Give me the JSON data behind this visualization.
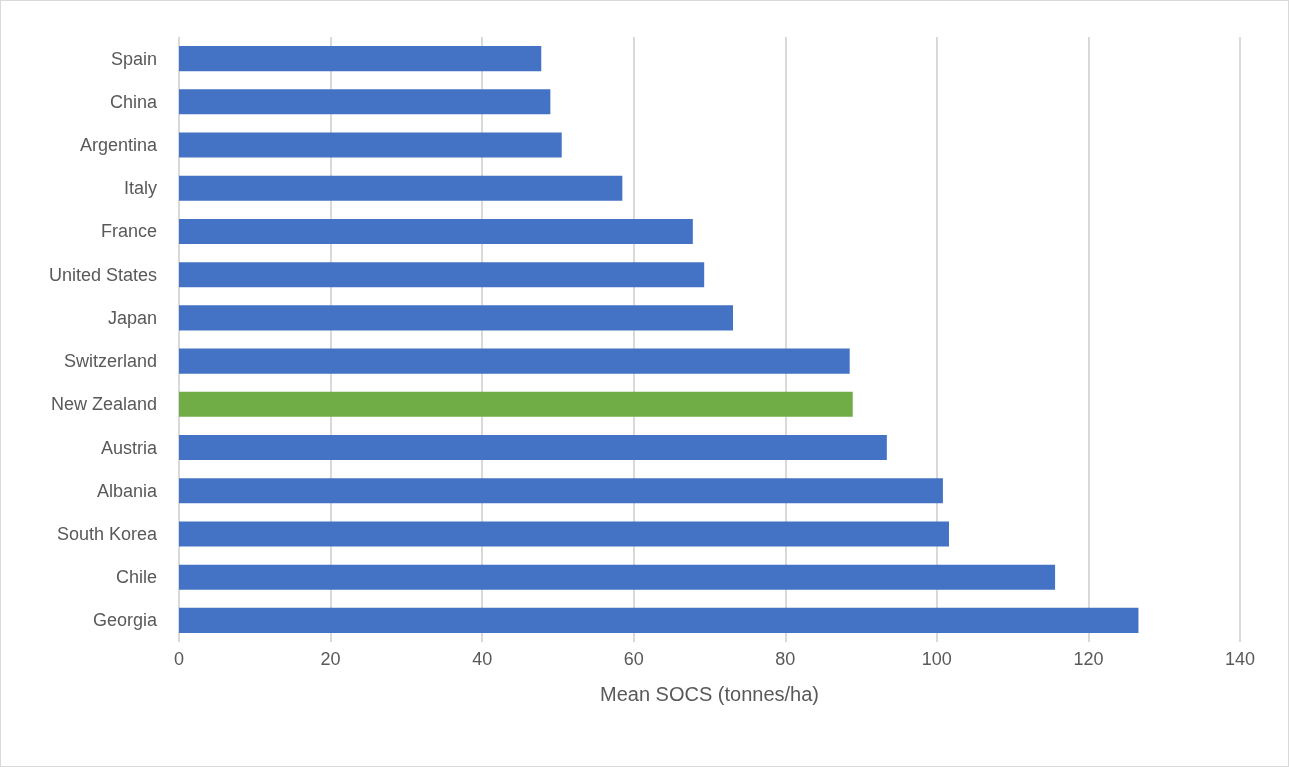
{
  "chart_data": {
    "type": "bar",
    "orientation": "horizontal",
    "xlabel": "Mean SOCS (tonnes/ha)",
    "categories": [
      "Spain",
      "China",
      "Argentina",
      "Italy",
      "France",
      "United States",
      "Japan",
      "Switzerland",
      "New Zealand",
      "Austria",
      "Albania",
      "South Korea",
      "Chile",
      "Georgia"
    ],
    "values": [
      47.8,
      49.0,
      50.5,
      58.5,
      67.8,
      69.3,
      73.1,
      88.5,
      88.9,
      93.4,
      100.8,
      101.6,
      115.6,
      126.6
    ],
    "colors": [
      "#4472c4",
      "#4472c4",
      "#4472c4",
      "#4472c4",
      "#4472c4",
      "#4472c4",
      "#4472c4",
      "#4472c4",
      "#70ad47",
      "#4472c4",
      "#4472c4",
      "#4472c4",
      "#4472c4",
      "#4472c4"
    ],
    "xlim": [
      0,
      140
    ],
    "xticks": [
      0,
      20,
      40,
      60,
      80,
      100,
      120,
      140
    ],
    "grid": "x"
  }
}
